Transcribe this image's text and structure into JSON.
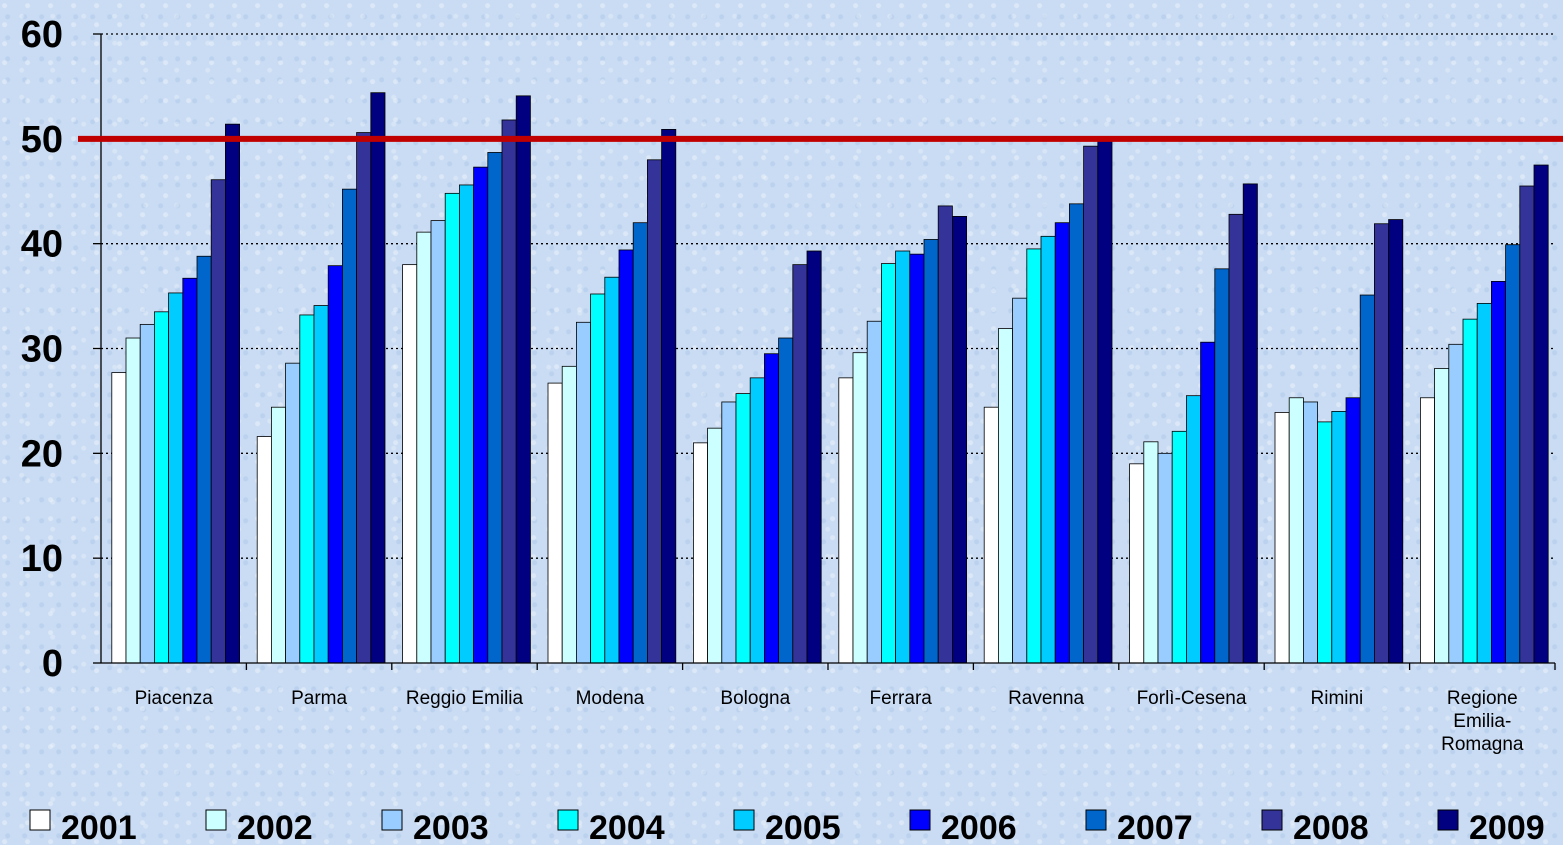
{
  "chart_data": {
    "type": "bar",
    "title": "",
    "xlabel": "",
    "ylabel": "",
    "ylim": [
      0,
      60
    ],
    "yticks": [
      0,
      10,
      20,
      30,
      40,
      50,
      60
    ],
    "grid": "horizontal dotted",
    "legend_position": "bottom",
    "reference_line": {
      "value": 50,
      "color": "#c00000"
    },
    "categories": [
      [
        "Piacenza"
      ],
      [
        "Parma"
      ],
      [
        "Reggio Emilia"
      ],
      [
        "Modena"
      ],
      [
        "Bologna"
      ],
      [
        "Ferrara"
      ],
      [
        "Ravenna"
      ],
      [
        "Forlì-Cesena"
      ],
      [
        "Rimini"
      ],
      [
        "Regione",
        "Emilia-",
        "Romagna"
      ]
    ],
    "series": [
      {
        "name": "2001",
        "color": "#ffffff",
        "values": [
          27.7,
          21.6,
          38.0,
          26.7,
          21.0,
          27.2,
          24.4,
          19.0,
          23.9,
          25.3
        ]
      },
      {
        "name": "2002",
        "color": "#ccffff",
        "values": [
          31.0,
          24.4,
          41.1,
          28.3,
          22.4,
          29.6,
          31.9,
          21.1,
          25.3,
          28.1
        ]
      },
      {
        "name": "2003",
        "color": "#99ccff",
        "values": [
          32.3,
          28.6,
          42.2,
          32.5,
          24.9,
          32.6,
          34.8,
          20.0,
          24.9,
          30.4
        ]
      },
      {
        "name": "2004",
        "color": "#00ffff",
        "values": [
          33.5,
          33.2,
          44.8,
          35.2,
          25.7,
          38.1,
          39.5,
          22.1,
          23.0,
          32.8
        ]
      },
      {
        "name": "2005",
        "color": "#00ccff",
        "values": [
          35.3,
          34.1,
          45.6,
          36.8,
          27.2,
          39.3,
          40.7,
          25.5,
          24.0,
          34.3
        ]
      },
      {
        "name": "2006",
        "color": "#0000ff",
        "values": [
          36.7,
          37.9,
          47.3,
          39.4,
          29.5,
          39.0,
          42.0,
          30.6,
          25.3,
          36.4
        ]
      },
      {
        "name": "2007",
        "color": "#0066cc",
        "values": [
          38.8,
          45.2,
          48.7,
          42.0,
          31.0,
          40.4,
          43.8,
          37.6,
          35.1,
          39.9
        ]
      },
      {
        "name": "2008",
        "color": "#333399",
        "values": [
          46.1,
          50.6,
          51.8,
          48.0,
          38.0,
          43.6,
          49.3,
          42.8,
          41.9,
          45.5
        ]
      },
      {
        "name": "2009",
        "color": "#000080",
        "values": [
          51.4,
          54.4,
          54.1,
          50.9,
          39.3,
          42.6,
          49.9,
          45.7,
          42.3,
          47.5
        ]
      }
    ]
  }
}
